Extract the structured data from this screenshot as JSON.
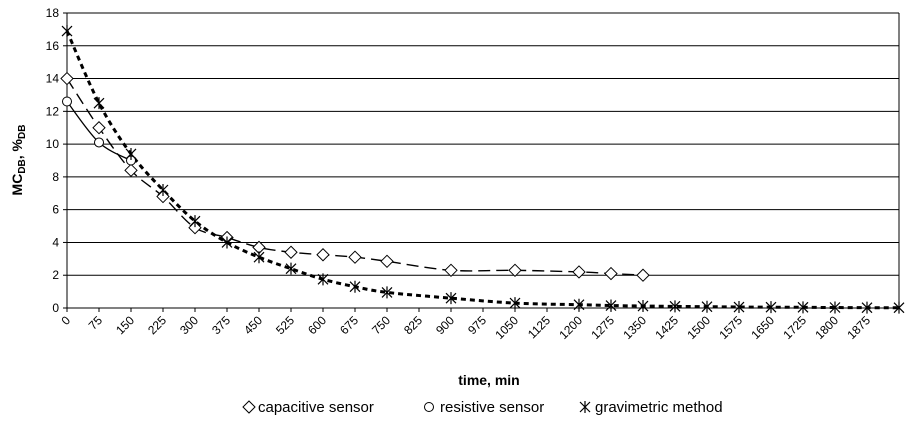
{
  "chart_data": {
    "type": "line",
    "title": "",
    "xlabel": "time, min",
    "ylabel_main": "MC",
    "ylabel_sub1": "DB",
    "ylabel_sep": ", %",
    "ylabel_sub2": "DB",
    "xlim": [
      0,
      1950
    ],
    "ylim": [
      0,
      18
    ],
    "x_ticks": [
      0,
      75,
      150,
      225,
      300,
      375,
      450,
      525,
      600,
      675,
      750,
      825,
      900,
      975,
      1050,
      1125,
      1200,
      1275,
      1350,
      1425,
      1500,
      1575,
      1650,
      1725,
      1800,
      1875
    ],
    "y_ticks": [
      0,
      2,
      4,
      6,
      8,
      10,
      12,
      14,
      16,
      18
    ],
    "grid": "horizontal",
    "legend_position": "bottom",
    "series": [
      {
        "name": "capacitive sensor",
        "marker": "diamond",
        "line": "long-dash",
        "points": [
          [
            0,
            14.0
          ],
          [
            75,
            11.0
          ],
          [
            150,
            8.4
          ],
          [
            225,
            6.8
          ],
          [
            300,
            4.9
          ],
          [
            375,
            4.3
          ],
          [
            450,
            3.7
          ],
          [
            525,
            3.4
          ],
          [
            600,
            3.25
          ],
          [
            675,
            3.1
          ],
          [
            750,
            2.85
          ],
          [
            900,
            2.3
          ],
          [
            1050,
            2.3
          ],
          [
            1200,
            2.2
          ],
          [
            1275,
            2.1
          ],
          [
            1350,
            2.0
          ]
        ]
      },
      {
        "name": "resistive sensor",
        "marker": "circle",
        "line": "solid",
        "points": [
          [
            0,
            12.6
          ],
          [
            75,
            10.1
          ],
          [
            150,
            9.0
          ]
        ]
      },
      {
        "name": "gravimetric method",
        "marker": "asterisk",
        "line": "short-dash",
        "points": [
          [
            0,
            16.9
          ],
          [
            75,
            12.5
          ],
          [
            150,
            9.4
          ],
          [
            225,
            7.2
          ],
          [
            300,
            5.3
          ],
          [
            375,
            4.0
          ],
          [
            450,
            3.1
          ],
          [
            525,
            2.4
          ],
          [
            600,
            1.75
          ],
          [
            675,
            1.3
          ],
          [
            750,
            0.95
          ],
          [
            900,
            0.6
          ],
          [
            1050,
            0.3
          ],
          [
            1200,
            0.2
          ],
          [
            1275,
            0.15
          ],
          [
            1350,
            0.12
          ],
          [
            1425,
            0.1
          ],
          [
            1500,
            0.08
          ],
          [
            1575,
            0.06
          ],
          [
            1650,
            0.05
          ],
          [
            1725,
            0.04
          ],
          [
            1800,
            0.03
          ],
          [
            1875,
            0.02
          ],
          [
            1950,
            0.02
          ]
        ]
      }
    ]
  }
}
